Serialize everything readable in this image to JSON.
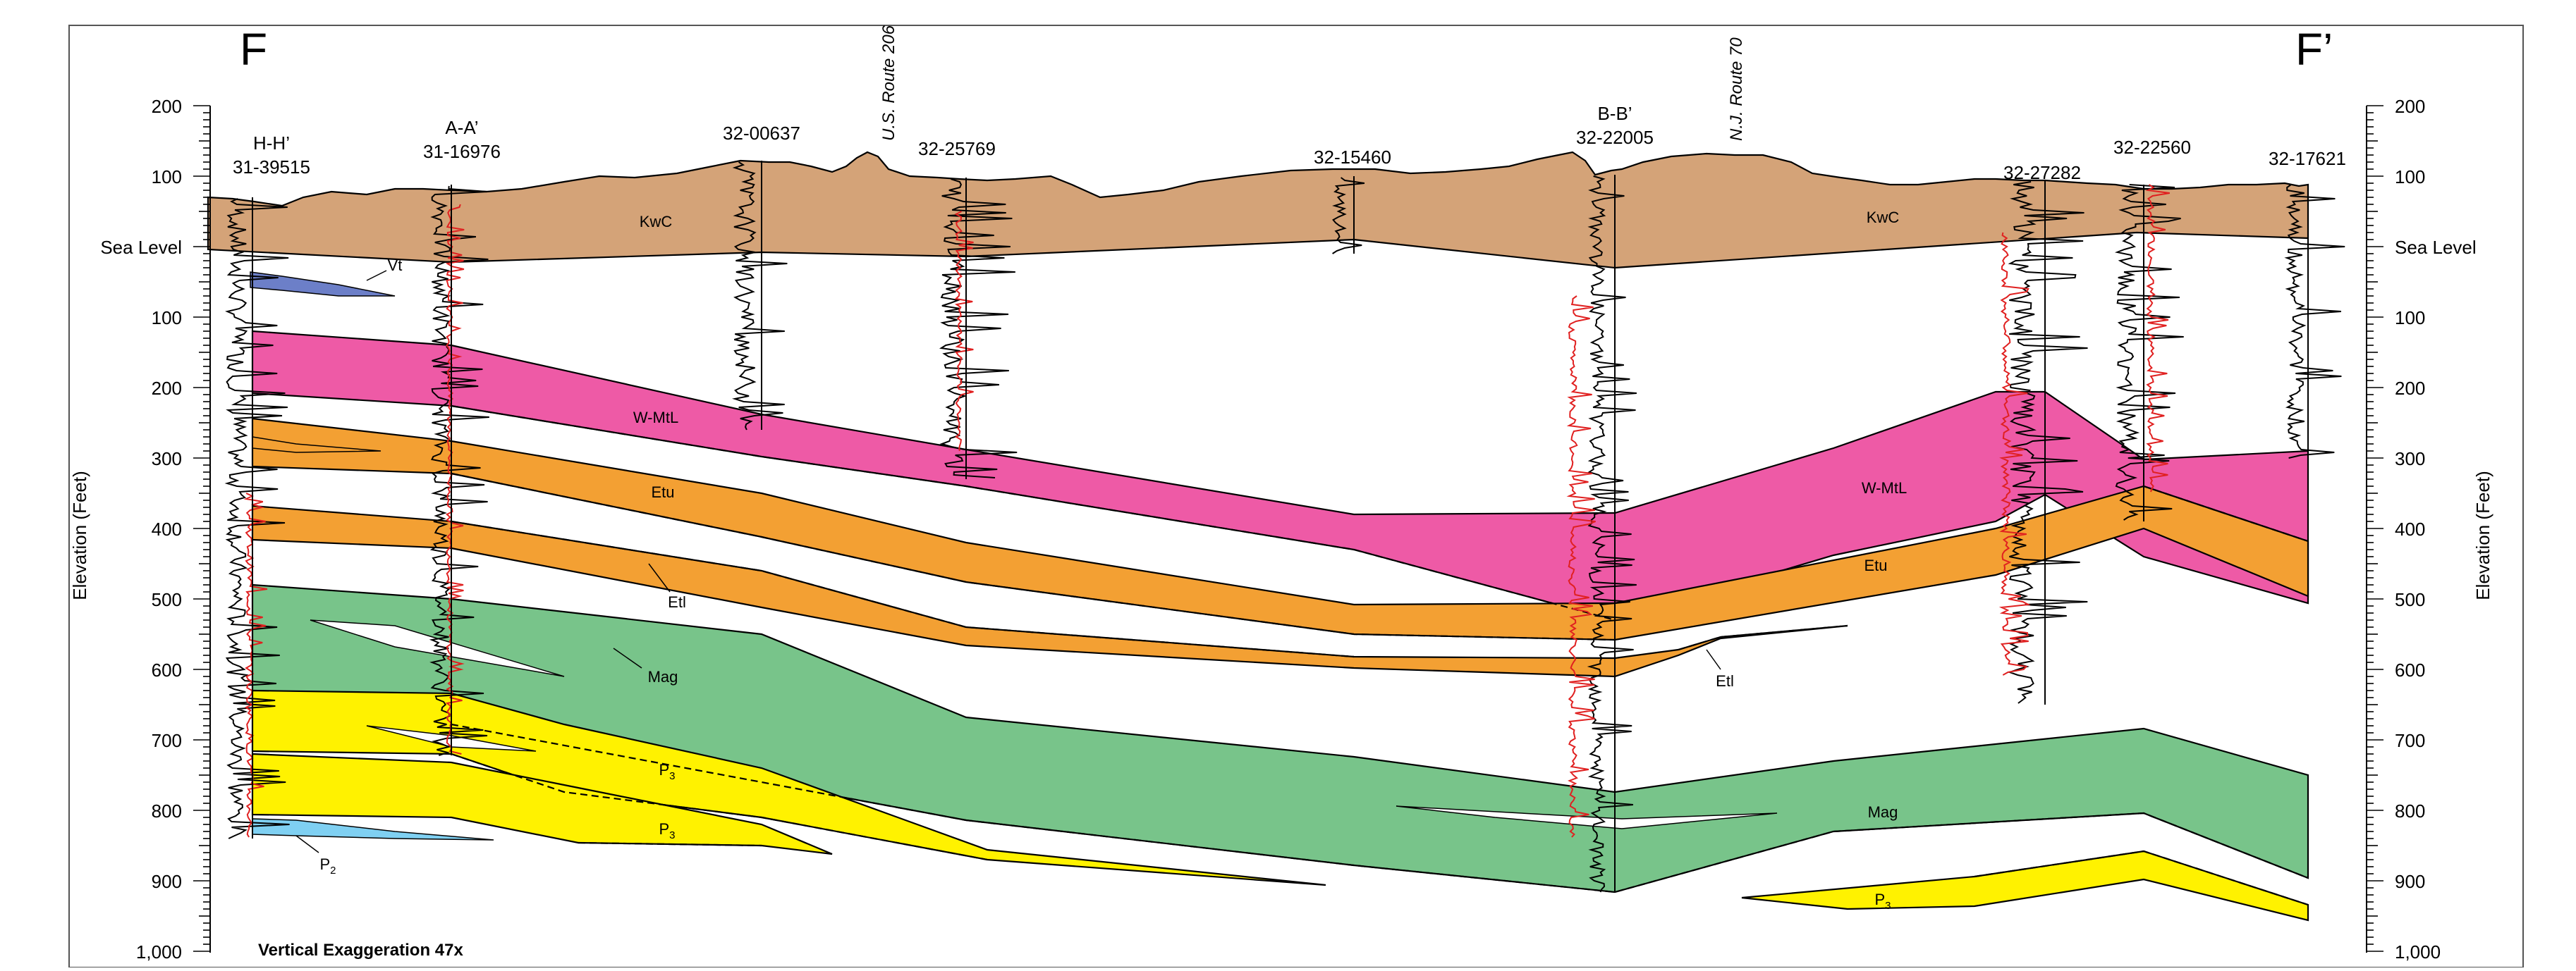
{
  "section": {
    "left_label": "F",
    "right_label": "F’",
    "axis_title_left": "Elevation (Feet)",
    "axis_title_right": "Elevation (Feet)",
    "sea_level_label": "Sea Level",
    "exaggeration_note": "Vertical Exaggeration 47x",
    "axis_ticks_above": [
      "200",
      "100"
    ],
    "axis_ticks_below": [
      "100",
      "200",
      "300",
      "400",
      "500",
      "600",
      "700",
      "800",
      "900",
      "1,000"
    ],
    "routes": [
      "U.S. Route 206",
      "N.J. Route 70"
    ]
  },
  "wells": [
    {
      "id": "31-39515",
      "cross": "H-H’"
    },
    {
      "id": "31-16976",
      "cross": "A-A’"
    },
    {
      "id": "32-00637",
      "cross": ""
    },
    {
      "id": "32-25769",
      "cross": ""
    },
    {
      "id": "32-15460",
      "cross": ""
    },
    {
      "id": "32-22005",
      "cross": "B-B’"
    },
    {
      "id": "32-27282",
      "cross": ""
    },
    {
      "id": "32-22560",
      "cross": ""
    },
    {
      "id": "32-17621",
      "cross": ""
    }
  ],
  "units": {
    "kwc": "KwC",
    "vt": "Vt",
    "wmtl": "W-MtL",
    "etu": "Etu",
    "etl": "Etl",
    "mag": "Mag",
    "p3": "P",
    "p3_sub": "3",
    "p2": "P",
    "p2_sub": "2"
  },
  "colors": {
    "kwc": "#d4a378",
    "vt": "#6c7fc8",
    "wmtl": "#ee5aa6",
    "etu": "#f3a033",
    "mag": "#78c48a",
    "p3": "#fff200",
    "p2": "#7fd0f2"
  }
}
